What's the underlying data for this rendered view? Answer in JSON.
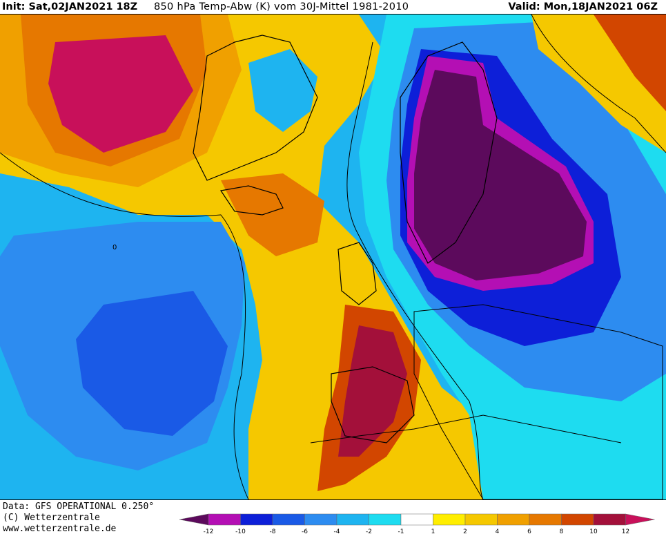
{
  "header": {
    "init": "Init: Sat,02JAN2021 18Z",
    "title": "850 hPa Temp-Abw (K) vom 30J-Mittel 1981-2010",
    "valid": "Valid: Mon,18JAN2021 06Z"
  },
  "map": {
    "field": "850 hPa temperature anomaly",
    "units": "K",
    "contour_label": "0",
    "anomaly_regions": [
      {
        "feature": "Scandinavia / Baltic / Western Russia",
        "anomaly": "below -12",
        "color": "#5c0a5c"
      },
      {
        "feature": "Eastern Europe",
        "anomaly": "-12 to -8",
        "color": "#1f3fe0"
      },
      {
        "feature": "Iberia / Morocco",
        "anomaly": "+8 to +12",
        "color": "#a3103a"
      },
      {
        "feature": "Northern Canada",
        "anomaly": "+10 to +12",
        "color": "#c8105a"
      },
      {
        "feature": "Central North Atlantic",
        "anomaly": "-8 to -6",
        "color": "#1a6ee6"
      },
      {
        "feature": "Iceland",
        "anomaly": "+4 to +8",
        "color": "#f0a000"
      }
    ]
  },
  "footer": {
    "source": "Data: GFS OPERATIONAL 0.250°",
    "copyright": "(C) Wetterzentrale",
    "url": "www.wetterzentrale.de"
  },
  "colorbar": {
    "segments": [
      {
        "value": "< -12",
        "color": "#5c0a5c"
      },
      {
        "value": "-12 to -10",
        "color": "#b40fb4"
      },
      {
        "value": "-10 to -8",
        "color": "#0d1fd8"
      },
      {
        "value": "-8 to -6",
        "color": "#1a5ae6"
      },
      {
        "value": "-6 to -4",
        "color": "#2d8cf0"
      },
      {
        "value": "-4 to -2",
        "color": "#1eb4f0"
      },
      {
        "value": "-2 to -1",
        "color": "#1edcf0"
      },
      {
        "value": "-1 to 1",
        "color": "#ffffff"
      },
      {
        "value": "1 to 2",
        "color": "#ffee00"
      },
      {
        "value": "2 to 4",
        "color": "#f5c800"
      },
      {
        "value": "4 to 6",
        "color": "#f0a000"
      },
      {
        "value": "6 to 8",
        "color": "#e67800"
      },
      {
        "value": "8 to 10",
        "color": "#d24600"
      },
      {
        "value": "10 to 12",
        "color": "#a3103a"
      },
      {
        "value": "> 12",
        "color": "#c8105a"
      }
    ],
    "ticks": [
      "-12",
      "-10",
      "-8",
      "-6",
      "-4",
      "-2",
      "-1",
      "1",
      "2",
      "4",
      "6",
      "8",
      "10",
      "12"
    ]
  }
}
